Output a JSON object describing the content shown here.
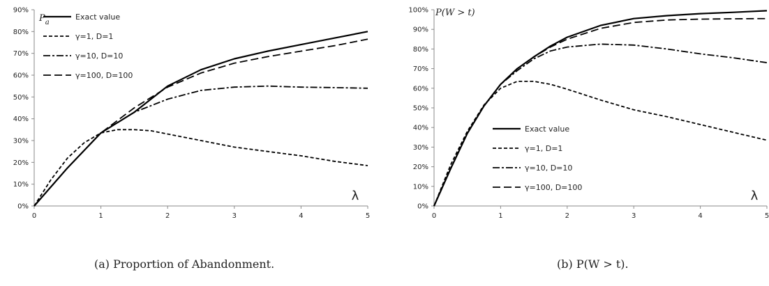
{
  "chart_data": [
    {
      "type": "line",
      "caption": "(a) Proportion of Abandonment.",
      "ylabel": "P_a",
      "ylabel_main": "P",
      "ylabel_sub": "a",
      "xlabel": "λ",
      "xlim": [
        0,
        5
      ],
      "ylim": [
        0,
        90
      ],
      "y_unit": "%",
      "x_ticks": [
        0,
        1,
        2,
        3,
        4,
        5
      ],
      "y_ticks": [
        0,
        10,
        20,
        30,
        40,
        50,
        60,
        70,
        80,
        90
      ],
      "legend_position": "top-left",
      "series": [
        {
          "name": "Exact value",
          "style": "solid",
          "x": [
            0,
            0.5,
            1,
            1.5,
            2,
            2.5,
            3,
            3.5,
            4,
            4.5,
            5
          ],
          "y": [
            0,
            17.5,
            33.5,
            43,
            55,
            62.5,
            67.5,
            71,
            74,
            77,
            80
          ]
        },
        {
          "name": "γ=1, D=1",
          "style": "dashed-short",
          "x": [
            0,
            0.25,
            0.5,
            0.75,
            1,
            1.25,
            1.5,
            1.75,
            2,
            2.5,
            3,
            3.5,
            4,
            4.5,
            5
          ],
          "y": [
            0,
            12,
            22,
            29,
            33.5,
            35,
            35,
            34.5,
            33,
            30,
            27,
            25,
            23,
            20.5,
            18.5
          ]
        },
        {
          "name": "γ=10, D=10",
          "style": "dash-dot",
          "x": [
            0,
            0.5,
            1,
            1.5,
            2,
            2.5,
            3,
            3.5,
            4,
            4.5,
            5
          ],
          "y": [
            0,
            17.5,
            33.5,
            43,
            49,
            53,
            54.5,
            55,
            54.5,
            54.3,
            54
          ]
        },
        {
          "name": "γ=100, D=100",
          "style": "dashed-long",
          "x": [
            0,
            0.5,
            1,
            1.5,
            2,
            2.5,
            3,
            3.5,
            4,
            4.5,
            5
          ],
          "y": [
            0,
            17.5,
            33.5,
            45,
            54.5,
            61,
            65.5,
            68.5,
            71,
            73.5,
            76.5
          ]
        }
      ]
    },
    {
      "type": "line",
      "caption": "(b) P(W > t).",
      "ylabel": "P(W > t)",
      "xlabel": "λ",
      "xlim": [
        0,
        5
      ],
      "ylim": [
        0,
        100
      ],
      "y_unit": "%",
      "x_ticks": [
        0,
        1,
        2,
        3,
        4,
        5
      ],
      "y_ticks": [
        0,
        10,
        20,
        30,
        40,
        50,
        60,
        70,
        80,
        90,
        100
      ],
      "legend_position": "center-left",
      "series": [
        {
          "name": "Exact value",
          "style": "solid",
          "x": [
            0,
            0.25,
            0.5,
            0.75,
            1,
            1.25,
            1.5,
            1.75,
            2,
            2.5,
            3,
            3.5,
            4,
            4.5,
            5
          ],
          "y": [
            0,
            19,
            37,
            51,
            62,
            70,
            76,
            81.5,
            86,
            92,
            95.5,
            97,
            98,
            98.7,
            99.5
          ]
        },
        {
          "name": "γ=1, D=1",
          "style": "dashed-short",
          "x": [
            0,
            0.25,
            0.5,
            0.75,
            1,
            1.25,
            1.5,
            1.75,
            2,
            2.5,
            3,
            3.5,
            4,
            4.5,
            5
          ],
          "y": [
            0,
            21,
            38,
            51.5,
            60,
            63.5,
            63.5,
            62,
            59.5,
            54,
            49,
            45.5,
            41.5,
            37.5,
            33.5
          ]
        },
        {
          "name": "γ=10, D=10",
          "style": "dash-dot",
          "x": [
            0,
            0.25,
            0.5,
            0.75,
            1,
            1.25,
            1.5,
            1.75,
            2,
            2.5,
            3,
            3.5,
            4,
            4.5,
            5
          ],
          "y": [
            0,
            19,
            37,
            51,
            62,
            69,
            75,
            79,
            81,
            82.5,
            82,
            80,
            77.5,
            75.5,
            73
          ]
        },
        {
          "name": "γ=100, D=100",
          "style": "dashed-long",
          "x": [
            0,
            0.25,
            0.5,
            0.75,
            1,
            1.25,
            1.5,
            1.75,
            2,
            2.5,
            3,
            3.5,
            4,
            4.5,
            5
          ],
          "y": [
            0,
            19,
            37,
            51,
            62,
            70,
            76,
            81,
            85,
            90.5,
            93.5,
            94.8,
            95.2,
            95.4,
            95.5
          ]
        }
      ]
    }
  ]
}
